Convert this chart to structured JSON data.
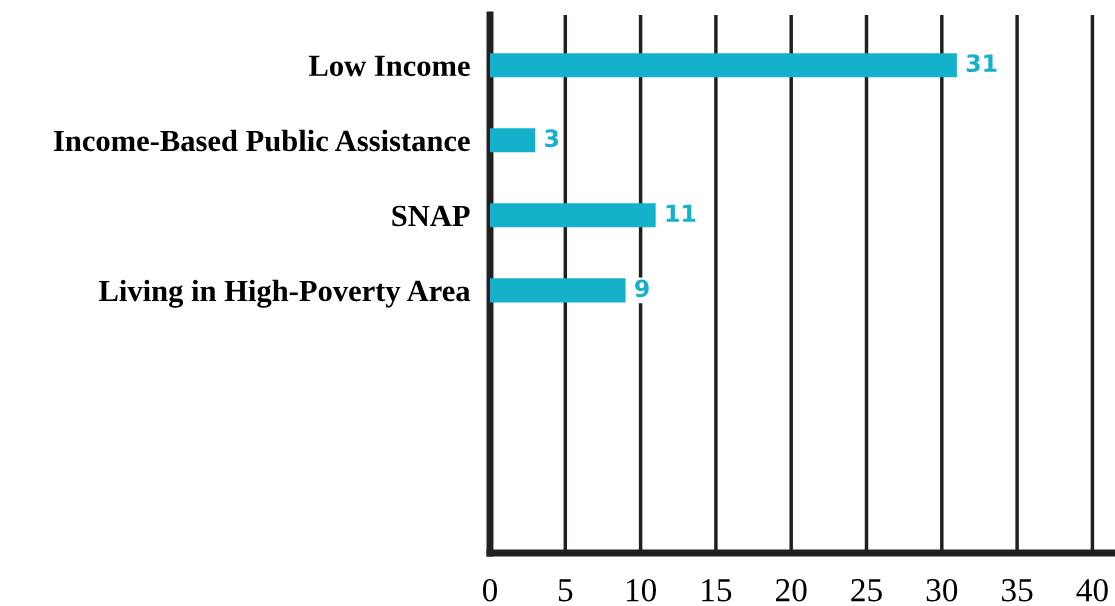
{
  "chart_data": {
    "type": "bar",
    "orientation": "horizontal",
    "categories": [
      "Low Income",
      "Income-Based Public Assistance",
      "SNAP",
      "Living in High-Poverty Area",
      null,
      null,
      null
    ],
    "values": [
      31,
      3,
      11,
      9,
      null,
      null,
      null
    ],
    "color": "#15b1cb",
    "data_labels": true,
    "xlim": [
      0,
      41.5
    ],
    "xticks": [
      0,
      5,
      10,
      15,
      20,
      25,
      30,
      35,
      40
    ],
    "grid": "x",
    "legend": false
  }
}
